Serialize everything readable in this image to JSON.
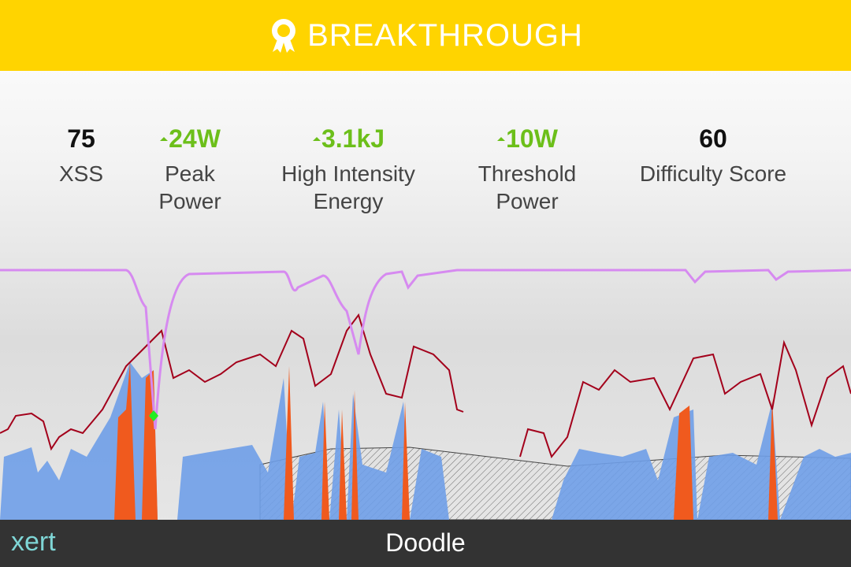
{
  "header": {
    "title": "BREAKTHROUGH"
  },
  "stats": [
    {
      "value": "75",
      "label": "XSS"
    },
    {
      "value": "24W",
      "label": "Peak Power"
    },
    {
      "value": "3.1kJ",
      "label": "High Intensity Energy"
    },
    {
      "value": "10W",
      "label": "Threshold Power"
    },
    {
      "value": "60",
      "label": "Difficulty Score"
    }
  ],
  "footer": {
    "logo": "xert",
    "title": "Doodle"
  }
}
